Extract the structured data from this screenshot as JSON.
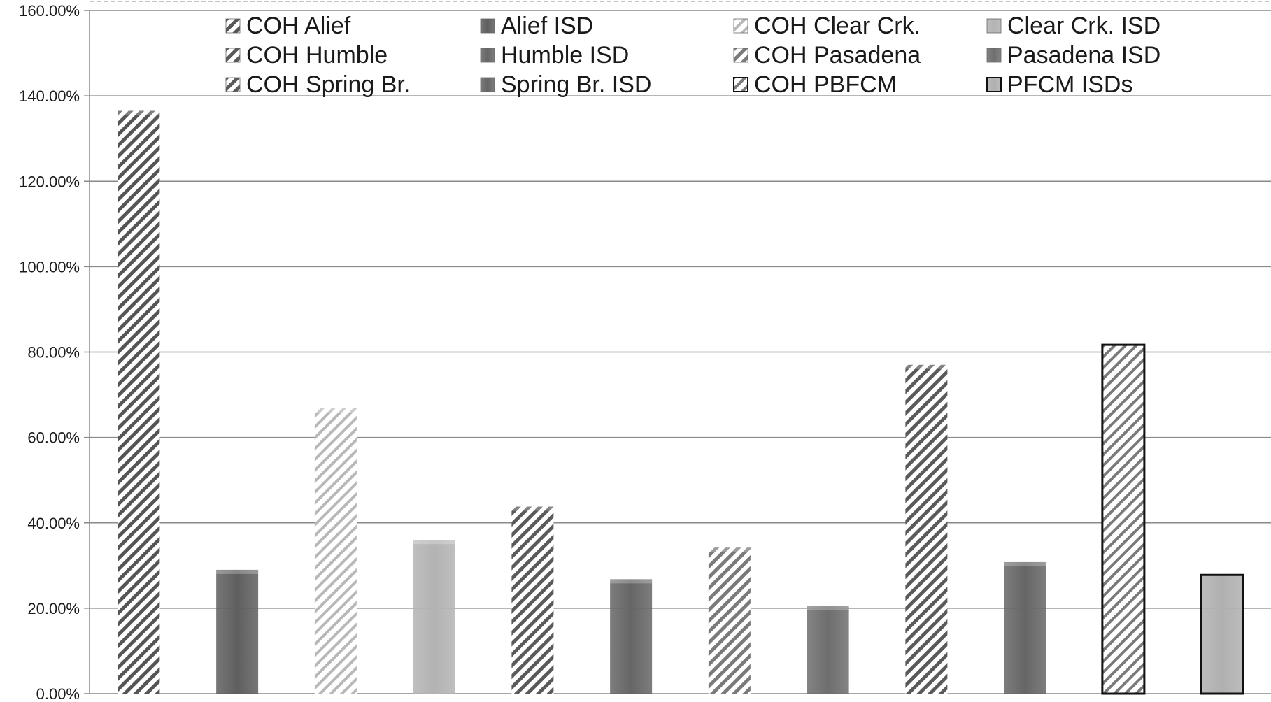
{
  "chart_data": {
    "type": "bar",
    "title": "",
    "xlabel": "",
    "ylabel": "",
    "ylim": [
      0,
      160
    ],
    "yticks": [
      "0.00%",
      "20.00%",
      "40.00%",
      "60.00%",
      "80.00%",
      "100.00%",
      "120.00%",
      "140.00%",
      "160.00%"
    ],
    "grid": true,
    "legend_position": "top",
    "series": [
      {
        "name": "COH Alief",
        "value": 136.5,
        "style": "hatch-dense",
        "color": "#555555"
      },
      {
        "name": "Alief ISD",
        "value": 29.0,
        "style": "solid",
        "color": "#5f5f5f"
      },
      {
        "name": "COH Clear Crk.",
        "value": 66.8,
        "style": "hatch-light",
        "color": "#b8b8b8"
      },
      {
        "name": "Clear Crk. ISD",
        "value": 36.0,
        "style": "solid",
        "color": "#b3b3b3"
      },
      {
        "name": "COH Humble",
        "value": 43.8,
        "style": "hatch-dense",
        "color": "#5a5a5a"
      },
      {
        "name": "Humble ISD",
        "value": 26.8,
        "style": "solid",
        "color": "#666666"
      },
      {
        "name": "COH Pasadena",
        "value": 34.2,
        "style": "hatch-medium",
        "color": "#7a7a7a"
      },
      {
        "name": "Pasadena ISD",
        "value": 20.5,
        "style": "solid",
        "color": "#6e6e6e"
      },
      {
        "name": "COH Spring Br.",
        "value": 77.0,
        "style": "hatch-dense",
        "color": "#5a5a5a"
      },
      {
        "name": "Spring Br. ISD",
        "value": 30.8,
        "style": "solid",
        "color": "#666666"
      },
      {
        "name": "COH PBFCM",
        "value": 81.7,
        "style": "hatch-outline",
        "color": "#7a7a7a"
      },
      {
        "name": "PFCM ISDs",
        "value": 27.8,
        "style": "solid-outline",
        "color": "#b0b0b0"
      }
    ]
  }
}
